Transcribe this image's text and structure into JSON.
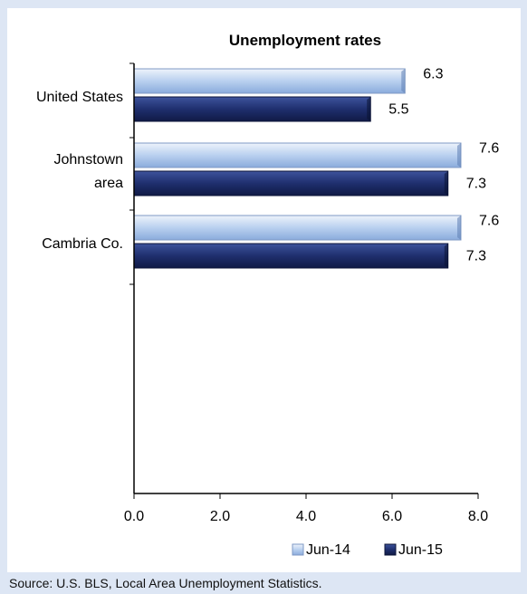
{
  "chart_data": {
    "type": "bar",
    "orientation": "horizontal",
    "title": "Unemployment rates",
    "categories": [
      "United States",
      "Johnstown area",
      "Cambria Co."
    ],
    "category_lines": [
      [
        "United States"
      ],
      [
        "Johnstown",
        "area"
      ],
      [
        "Cambria Co."
      ]
    ],
    "series": [
      {
        "name": "Jun-14",
        "values": [
          6.3,
          7.6,
          7.6
        ],
        "color": "#a8c4ea",
        "value_labels": [
          "6.3",
          "7.6",
          "7.6"
        ]
      },
      {
        "name": "Jun-15",
        "values": [
          5.5,
          7.3,
          7.3
        ],
        "color": "#1f2f6e",
        "value_labels": [
          "5.5",
          "7.3",
          "7.3"
        ]
      }
    ],
    "xlim": [
      0,
      8
    ],
    "x_ticks": [
      0,
      2,
      4,
      6,
      8
    ],
    "x_tick_labels": [
      "0.0",
      "2.0",
      "4.0",
      "6.0",
      "8.0"
    ],
    "grid": false,
    "legend_position": "bottom-right"
  },
  "source": "Source: U.S. BLS, Local Area Unemployment Statistics."
}
